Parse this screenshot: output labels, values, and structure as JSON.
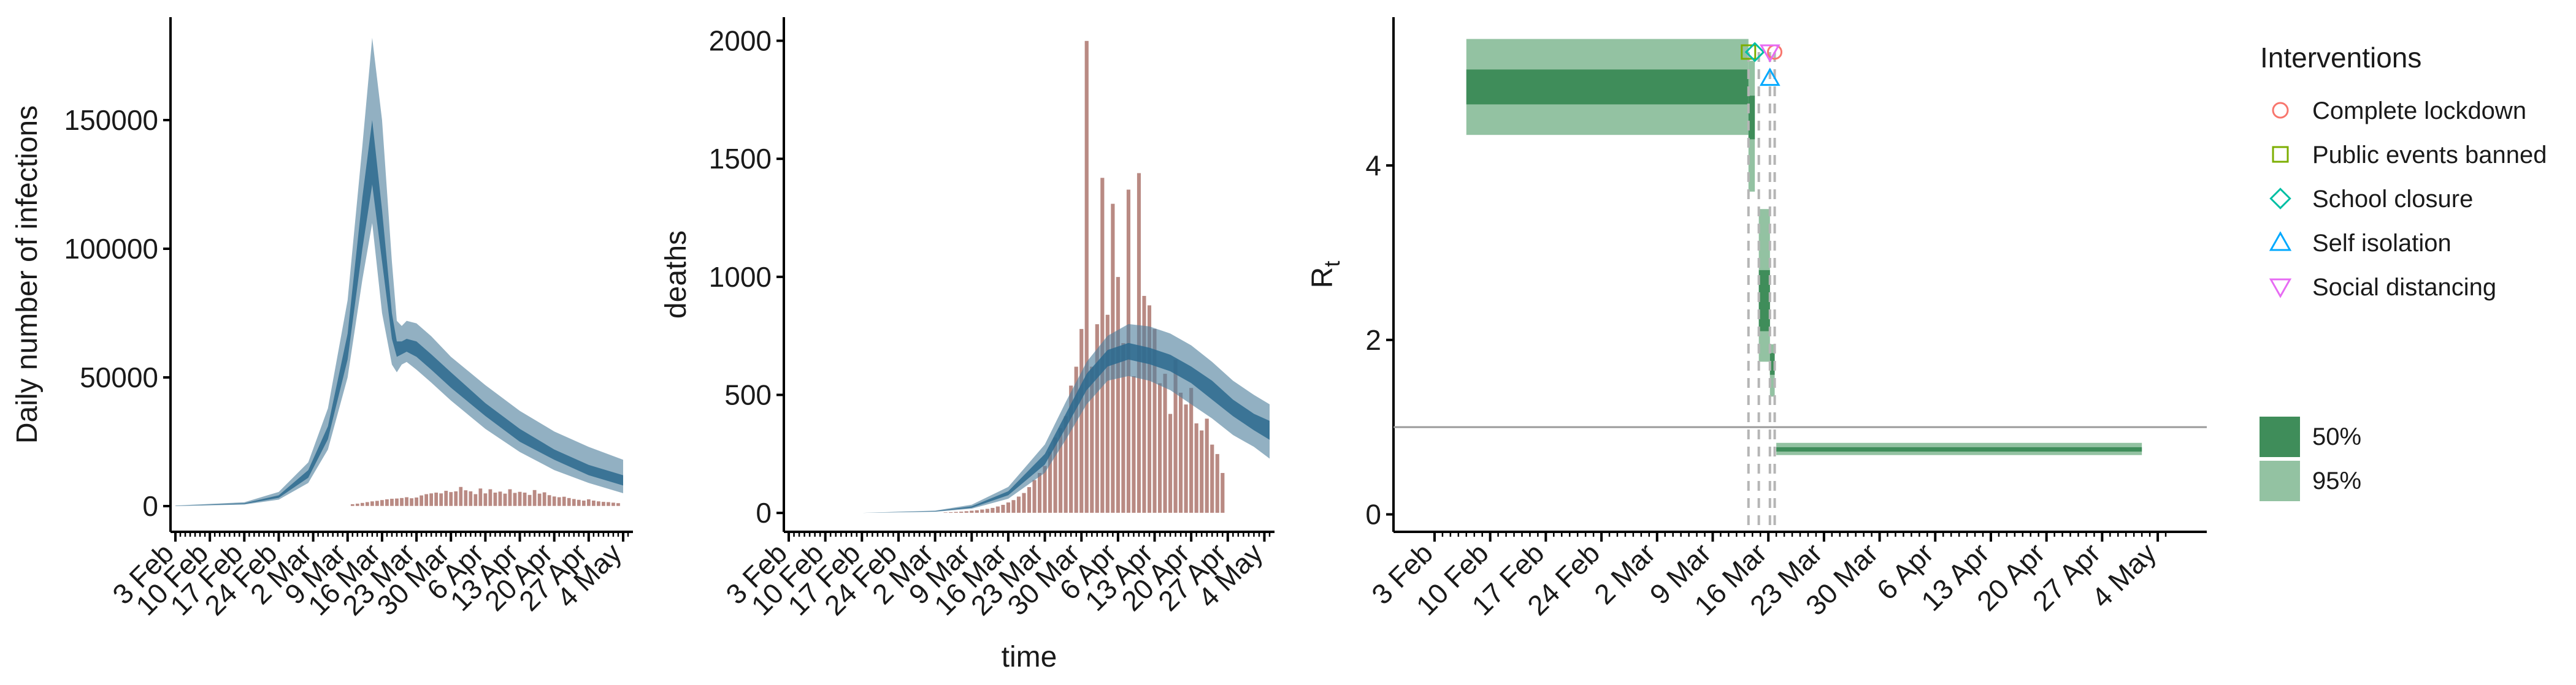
{
  "colors": {
    "band95_blue": "#4f7f9c",
    "band50_blue": "#2c6a8e",
    "bar_fill": "#b98a83",
    "rt_95": "#93c2a2",
    "rt_50": "#3f8d5a",
    "refline": "#9a9a9a",
    "dashed": "#b5b5b5",
    "axis": "#000000",
    "marker_lockdown": "#f8766d",
    "marker_events": "#7cae00",
    "marker_school": "#00bfa4",
    "marker_self": "#00a9ff",
    "marker_social": "#e76bf3"
  },
  "chart_data": [
    {
      "type": "area",
      "ylabel": "Daily number of infections",
      "xlabel": "",
      "x_start": "2020-02-03",
      "x_end": "2020-05-05",
      "ylim": [
        -10000,
        190000
      ],
      "yticks": [
        0,
        50000,
        100000,
        150000
      ],
      "ytick_labels": [
        "0",
        "50000",
        "100000",
        "150000"
      ],
      "xticks": [
        "2020-02-03",
        "2020-02-10",
        "2020-02-17",
        "2020-02-24",
        "2020-03-02",
        "2020-03-09",
        "2020-03-16",
        "2020-03-23",
        "2020-03-30",
        "2020-04-06",
        "2020-04-13",
        "2020-04-20",
        "2020-04-27",
        "2020-05-04"
      ],
      "xtick_labels": [
        "3 Feb",
        "10 Feb",
        "17 Feb",
        "24 Feb",
        "2 Mar",
        "9 Mar",
        "16 Mar",
        "23 Mar",
        "30 Mar",
        "6 Apr",
        "13 Apr",
        "20 Apr",
        "27 Apr",
        "4 May"
      ],
      "series": [
        {
          "kind": "band95",
          "x": [
            "2020-02-03",
            "2020-02-17",
            "2020-02-24",
            "2020-03-01",
            "2020-03-05",
            "2020-03-09",
            "2020-03-12",
            "2020-03-14",
            "2020-03-16",
            "2020-03-18",
            "2020-03-19",
            "2020-03-20",
            "2020-03-21",
            "2020-03-23",
            "2020-03-26",
            "2020-03-30",
            "2020-04-06",
            "2020-04-13",
            "2020-04-20",
            "2020-04-27",
            "2020-05-04"
          ],
          "upper": [
            200,
            1500,
            5500,
            17000,
            38000,
            80000,
            140000,
            182000,
            150000,
            95000,
            72000,
            70000,
            72000,
            71000,
            66000,
            58000,
            47000,
            37000,
            29000,
            23000,
            18000
          ],
          "lower": [
            0,
            600,
            2500,
            9000,
            22000,
            50000,
            88000,
            110000,
            75000,
            55000,
            52000,
            55000,
            56000,
            53000,
            48000,
            41000,
            30000,
            21000,
            14000,
            9000,
            5000
          ]
        },
        {
          "kind": "band50",
          "x": [
            "2020-02-03",
            "2020-02-17",
            "2020-02-24",
            "2020-03-01",
            "2020-03-05",
            "2020-03-09",
            "2020-03-12",
            "2020-03-14",
            "2020-03-16",
            "2020-03-18",
            "2020-03-19",
            "2020-03-20",
            "2020-03-21",
            "2020-03-23",
            "2020-03-26",
            "2020-03-30",
            "2020-04-06",
            "2020-04-13",
            "2020-04-20",
            "2020-04-27",
            "2020-05-04"
          ],
          "upper": [
            100,
            1100,
            4200,
            14000,
            31000,
            67000,
            120000,
            150000,
            115000,
            75000,
            64000,
            64000,
            65000,
            64000,
            59000,
            52000,
            40000,
            30000,
            22000,
            16000,
            12000
          ],
          "lower": [
            50,
            800,
            3200,
            11000,
            26000,
            57000,
            100000,
            125000,
            95000,
            65000,
            58000,
            59000,
            60000,
            58000,
            53000,
            46000,
            35000,
            25000,
            18000,
            12000,
            8000
          ]
        }
      ],
      "bars": {
        "start": "2020-03-10",
        "values": [
          800,
          1000,
          1300,
          1600,
          1900,
          2100,
          2400,
          2700,
          2900,
          3000,
          3200,
          3500,
          3100,
          3400,
          4200,
          4700,
          5000,
          5300,
          5000,
          6000,
          5500,
          5800,
          7500,
          6200,
          5800,
          4700,
          6900,
          5000,
          6600,
          5300,
          5700,
          4900,
          6600,
          5200,
          5600,
          5300,
          4400,
          6300,
          4900,
          5400,
          4300,
          3800,
          3500,
          3700,
          3200,
          2800,
          2500,
          2200,
          2700,
          2200,
          1900,
          1700,
          1600,
          1400,
          1200
        ]
      }
    },
    {
      "type": "bar",
      "ylabel": "deaths",
      "xlabel": "time",
      "x_start": "2020-02-03",
      "x_end": "2020-05-05",
      "ylim": [
        -80,
        2100
      ],
      "yticks": [
        0,
        500,
        1000,
        1500,
        2000
      ],
      "ytick_labels": [
        "0",
        "500",
        "1000",
        "1500",
        "2000"
      ],
      "xticks": [
        "2020-02-03",
        "2020-02-10",
        "2020-02-17",
        "2020-02-24",
        "2020-03-02",
        "2020-03-09",
        "2020-03-16",
        "2020-03-23",
        "2020-03-30",
        "2020-04-06",
        "2020-04-13",
        "2020-04-20",
        "2020-04-27",
        "2020-05-04"
      ],
      "xtick_labels": [
        "3 Feb",
        "10 Feb",
        "17 Feb",
        "24 Feb",
        "2 Mar",
        "9 Mar",
        "16 Mar",
        "23 Mar",
        "30 Mar",
        "6 Apr",
        "13 Apr",
        "20 Apr",
        "27 Apr",
        "4 May"
      ],
      "bars": {
        "start": "2020-03-04",
        "values": [
          3,
          4,
          5,
          6,
          8,
          10,
          12,
          15,
          18,
          22,
          28,
          35,
          45,
          55,
          70,
          85,
          110,
          140,
          170,
          200,
          260,
          320,
          360,
          410,
          540,
          620,
          780,
          2000,
          620,
          800,
          1420,
          840,
          1310,
          1000,
          720,
          1370,
          580,
          1440,
          920,
          880,
          780,
          550,
          590,
          420,
          650,
          510,
          460,
          530,
          380,
          350,
          400,
          290,
          250,
          170
        ]
      },
      "series": [
        {
          "kind": "band95",
          "x": [
            "2020-02-03",
            "2020-02-17",
            "2020-03-02",
            "2020-03-09",
            "2020-03-16",
            "2020-03-23",
            "2020-03-27",
            "2020-03-31",
            "2020-04-04",
            "2020-04-08",
            "2020-04-12",
            "2020-04-16",
            "2020-04-20",
            "2020-04-24",
            "2020-04-28",
            "2020-05-02",
            "2020-05-05"
          ],
          "upper": [
            0,
            0,
            10,
            35,
            110,
            290,
            470,
            640,
            750,
            800,
            790,
            760,
            710,
            640,
            560,
            500,
            460
          ],
          "lower": [
            0,
            0,
            5,
            18,
            60,
            170,
            310,
            460,
            560,
            580,
            560,
            520,
            460,
            400,
            330,
            280,
            230
          ]
        },
        {
          "kind": "band50",
          "x": [
            "2020-02-03",
            "2020-02-17",
            "2020-03-02",
            "2020-03-09",
            "2020-03-16",
            "2020-03-23",
            "2020-03-27",
            "2020-03-31",
            "2020-04-04",
            "2020-04-08",
            "2020-04-12",
            "2020-04-16",
            "2020-04-20",
            "2020-04-24",
            "2020-04-28",
            "2020-05-02",
            "2020-05-05"
          ],
          "upper": [
            0,
            0,
            8,
            28,
            92,
            250,
            420,
            590,
            690,
            720,
            700,
            670,
            620,
            560,
            480,
            420,
            390
          ],
          "lower": [
            0,
            0,
            6,
            22,
            75,
            205,
            360,
            520,
            620,
            650,
            630,
            600,
            550,
            480,
            410,
            350,
            310
          ]
        }
      ]
    },
    {
      "type": "step",
      "ylabel": "R",
      "ylabel_sub": "t",
      "xlabel": "",
      "x_start": "2020-02-03",
      "x_end": "2020-05-05",
      "ylim": [
        -0.2,
        5.7
      ],
      "yticks": [
        0,
        2,
        4
      ],
      "ytick_labels": [
        "0",
        "2",
        "4"
      ],
      "xticks": [
        "2020-02-03",
        "2020-02-10",
        "2020-02-17",
        "2020-02-24",
        "2020-03-02",
        "2020-03-09",
        "2020-03-16",
        "2020-03-23",
        "2020-03-30",
        "2020-04-06",
        "2020-04-13",
        "2020-04-20",
        "2020-04-27",
        "2020-05-04"
      ],
      "xtick_labels": [
        "3 Feb",
        "10 Feb",
        "17 Feb",
        "24 Feb",
        "2 Mar",
        "9 Mar",
        "16 Mar",
        "23 Mar",
        "30 Mar",
        "6 Apr",
        "13 Apr",
        "20 Apr",
        "27 Apr",
        "4 May"
      ],
      "reference_line": 1,
      "segments": [
        {
          "start": "2020-02-07",
          "end": "2020-03-13.5",
          "lo95": 4.35,
          "hi95": 5.45,
          "lo50": 4.7,
          "hi50": 5.1
        },
        {
          "start": "2020-03-13.5",
          "end": "2020-03-14.3",
          "lo95": 3.7,
          "hi95": 5.2,
          "lo50": 4.3,
          "hi50": 4.8
        },
        {
          "start": "2020-03-14.8",
          "end": "2020-03-16.2",
          "lo95": 1.75,
          "hi95": 3.5,
          "lo50": 2.1,
          "hi50": 2.8
        },
        {
          "start": "2020-03-16.2",
          "end": "2020-03-16.8",
          "lo95": 1.35,
          "hi95": 1.95,
          "lo50": 1.6,
          "hi50": 1.85
        },
        {
          "start": "2020-03-17",
          "end": "2020-05-02",
          "lo95": 0.68,
          "hi95": 0.82,
          "lo50": 0.72,
          "hi50": 0.77
        }
      ],
      "interventions_dates": [
        "2020-03-13.5",
        "2020-03-14.8",
        "2020-03-16.2",
        "2020-03-16.8"
      ],
      "markers": [
        {
          "name": "Complete lockdown",
          "shape": "circle",
          "date": "2020-03-16.8",
          "y": 5.3
        },
        {
          "name": "Public events banned",
          "shape": "square",
          "date": "2020-03-13.5",
          "y": 5.3
        },
        {
          "name": "School closure",
          "shape": "diamond",
          "date": "2020-03-14.3",
          "y": 5.3
        },
        {
          "name": "Self isolation",
          "shape": "triangle-up",
          "date": "2020-03-16.2",
          "y": 5.0
        },
        {
          "name": "Social distancing",
          "shape": "triangle-down",
          "date": "2020-03-16.2",
          "y": 5.3
        }
      ]
    }
  ],
  "legend": {
    "title": "Interventions",
    "items": [
      {
        "label": "Complete lockdown",
        "shape": "circle",
        "color": "#f8766d"
      },
      {
        "label": "Public events banned",
        "shape": "square",
        "color": "#7cae00"
      },
      {
        "label": "School closure",
        "shape": "diamond",
        "color": "#00bfa4"
      },
      {
        "label": "Self isolation",
        "shape": "triangle-up",
        "color": "#00a9ff"
      },
      {
        "label": "Social distancing",
        "shape": "triangle-down",
        "color": "#e76bf3"
      }
    ],
    "ci_items": [
      {
        "label": "50%"
      },
      {
        "label": "95%"
      }
    ]
  }
}
